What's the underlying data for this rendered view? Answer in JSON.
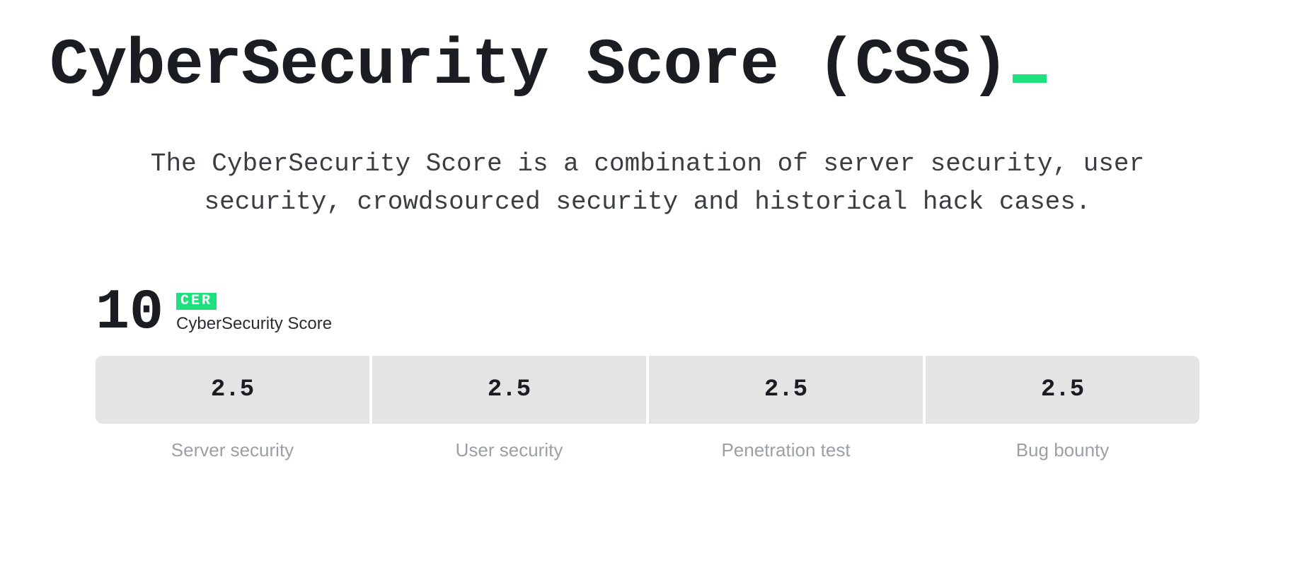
{
  "colors": {
    "accent": "#1ee07f",
    "text_primary": "#1a1d21",
    "text_secondary": "#9ca0a6",
    "card_bg": "#e4e4e4",
    "background": "#ffffff"
  },
  "title": "CyberSecurity Score (CSS)",
  "description": "The CyberSecurity Score is a combination of server security, user security, crowdsourced security and historical hack cases.",
  "score": {
    "value": "10",
    "badge_text": "CER",
    "label": "CyberSecurity Score"
  },
  "cards": [
    {
      "value": "2.5",
      "label": "Server security"
    },
    {
      "value": "2.5",
      "label": "User security"
    },
    {
      "value": "2.5",
      "label": "Penetration test"
    },
    {
      "value": "2.5",
      "label": "Bug bounty"
    }
  ]
}
